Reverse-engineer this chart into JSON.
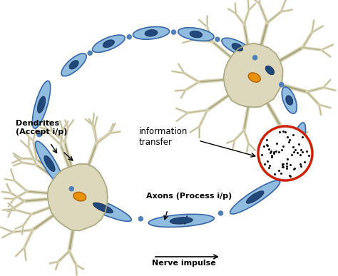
{
  "background_color": "#ffffff",
  "neuron_body_color": "#ddd8bc",
  "neuron_body_edge": "#aaa880",
  "soma_color": "#e8920a",
  "soma_edge": "#b06008",
  "axon_seg_color": "#90bce0",
  "axon_seg_dark": "#5080b8",
  "axon_node_color": "#204878",
  "axon_edge_color": "#3868a8",
  "synapse_dot_color": "#111111",
  "synapse_circle_color": "#cc2200",
  "label_dendrites": "Dendrites\n(Accept i/p)",
  "label_axons": "Axons (Process i/p)",
  "label_nerve": "Nerve impulse",
  "label_info": "information\ntransfer",
  "figsize": [
    4.74,
    3.87
  ],
  "dpi": 100
}
